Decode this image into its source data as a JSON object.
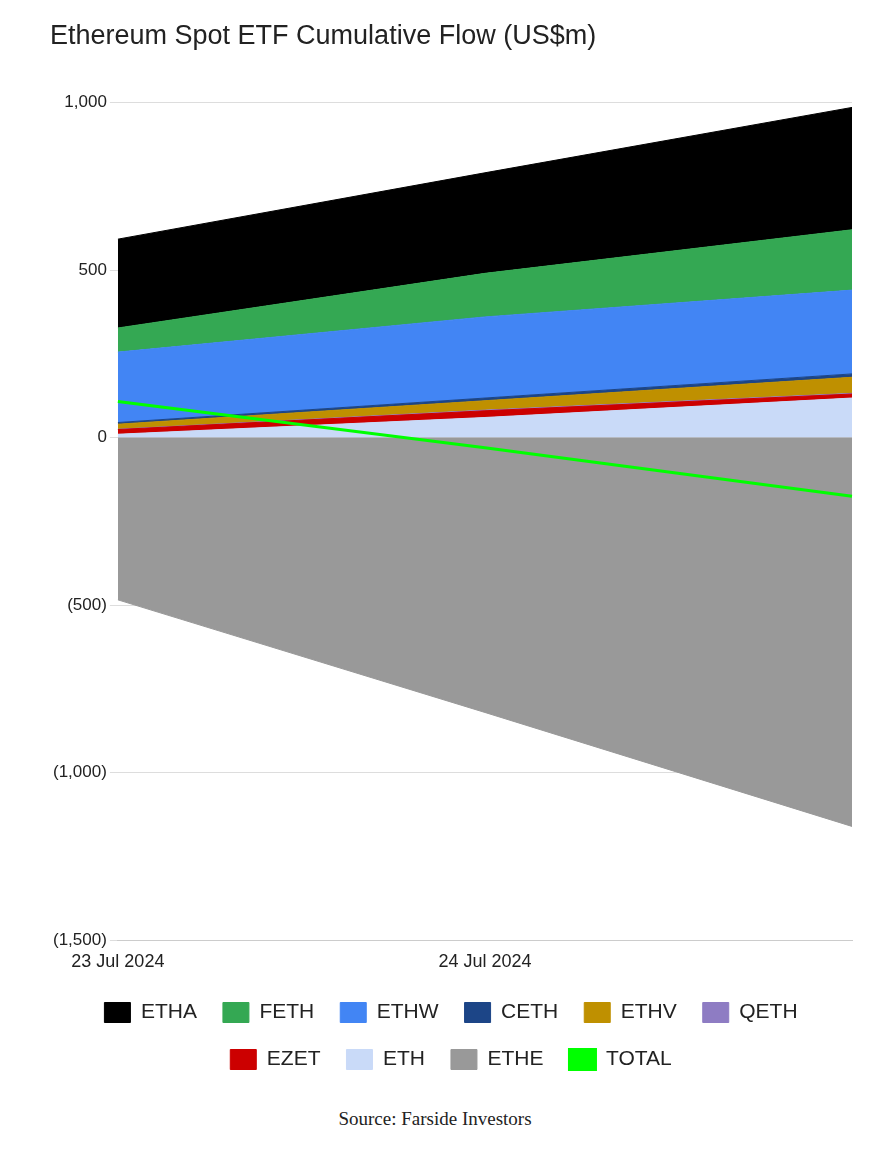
{
  "chart_data": {
    "type": "area",
    "title": "Ethereum Spot ETF Cumulative Flow (US$m)",
    "source": "Source: Farside Investors",
    "categories": [
      "23 Jul 2024",
      "24 Jul 2024",
      null
    ],
    "series": [
      {
        "name": "ETHA",
        "color": "#000000",
        "values": [
          265,
          300,
          365
        ]
      },
      {
        "name": "FETH",
        "color": "#34a853",
        "values": [
          72,
          130,
          180
        ]
      },
      {
        "name": "ETHW",
        "color": "#4285f4",
        "values": [
          210,
          242,
          250
        ]
      },
      {
        "name": "CETH",
        "color": "#1c4587",
        "values": [
          5,
          8,
          10
        ]
      },
      {
        "name": "ETHV",
        "color": "#bf9000",
        "values": [
          15,
          28,
          48
        ]
      },
      {
        "name": "QETH",
        "color": "#8e7cc3",
        "values": [
          1,
          2,
          2
        ]
      },
      {
        "name": "EZET",
        "color": "#cc0000",
        "values": [
          14,
          20,
          12
        ]
      },
      {
        "name": "ETH",
        "color": "#c9daf8",
        "values": [
          10,
          60,
          118
        ]
      },
      {
        "name": "ETHE",
        "color": "#999999",
        "values": [
          -484,
          -820,
          -1160
        ]
      },
      {
        "name": "TOTAL",
        "color": "#00ff00",
        "type": "line",
        "values": [
          108,
          -30,
          -175
        ]
      }
    ],
    "ylim": [
      -1500,
      1000
    ],
    "yticks": [
      {
        "value": -1500,
        "label": "(1,500)"
      },
      {
        "value": -1000,
        "label": "(1,000)"
      },
      {
        "value": -500,
        "label": "(500)"
      },
      0,
      500,
      {
        "value": 1000,
        "label": "1,000"
      }
    ],
    "stacked": true,
    "grid": true,
    "legend": "bottom"
  }
}
